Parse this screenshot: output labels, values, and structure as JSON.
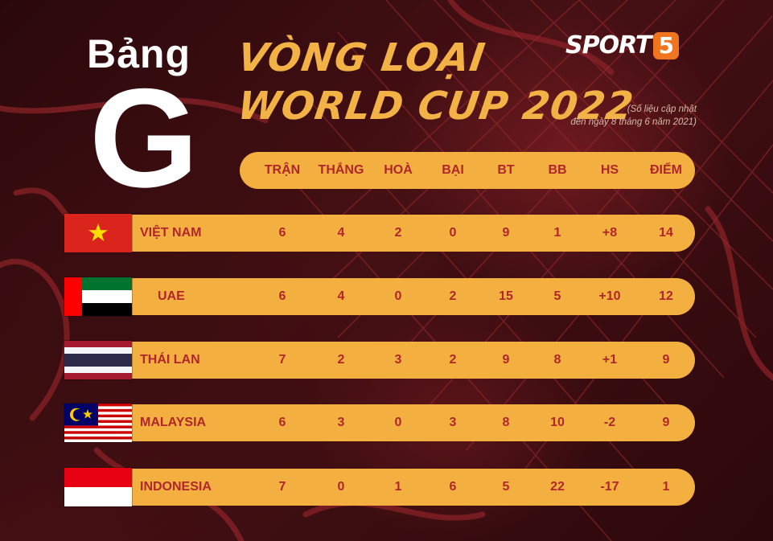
{
  "heading": {
    "bang": "Bảng",
    "group_letter": "G"
  },
  "title": {
    "line1": "VÒNG LOẠI",
    "line2": "WORLD CUP 2022"
  },
  "logo": {
    "text": "SPORT",
    "number": "5",
    "accent": "#f0751f"
  },
  "update_note": {
    "line1": "(Số liệu cập nhật",
    "line2": "đến ngày 8 tháng 6 năm 2021)"
  },
  "columns": [
    "TRẬN",
    "THẮNG",
    "HOÀ",
    "BẠI",
    "BT",
    "BB",
    "HS",
    "ĐIỂM"
  ],
  "teams": [
    {
      "name": "VIỆT NAM",
      "flag": "vietnam-flag",
      "stats": [
        "6",
        "4",
        "2",
        "0",
        "9",
        "1",
        "+8",
        "14"
      ]
    },
    {
      "name": "UAE",
      "flag": "uae-flag",
      "stats": [
        "6",
        "4",
        "0",
        "2",
        "15",
        "5",
        "+10",
        "12"
      ]
    },
    {
      "name": "THÁI LAN",
      "flag": "thailand-flag",
      "stats": [
        "7",
        "2",
        "3",
        "2",
        "9",
        "8",
        "+1",
        "9"
      ]
    },
    {
      "name": "MALAYSIA",
      "flag": "malaysia-flag",
      "stats": [
        "6",
        "3",
        "0",
        "3",
        "8",
        "10",
        "-2",
        "9"
      ]
    },
    {
      "name": "INDONESIA",
      "flag": "indonesia-flag",
      "stats": [
        "7",
        "0",
        "1",
        "6",
        "5",
        "22",
        "-17",
        "1"
      ]
    }
  ],
  "colors": {
    "pill": "#f3b040",
    "text": "#b0262b",
    "title": "#f2b245"
  }
}
